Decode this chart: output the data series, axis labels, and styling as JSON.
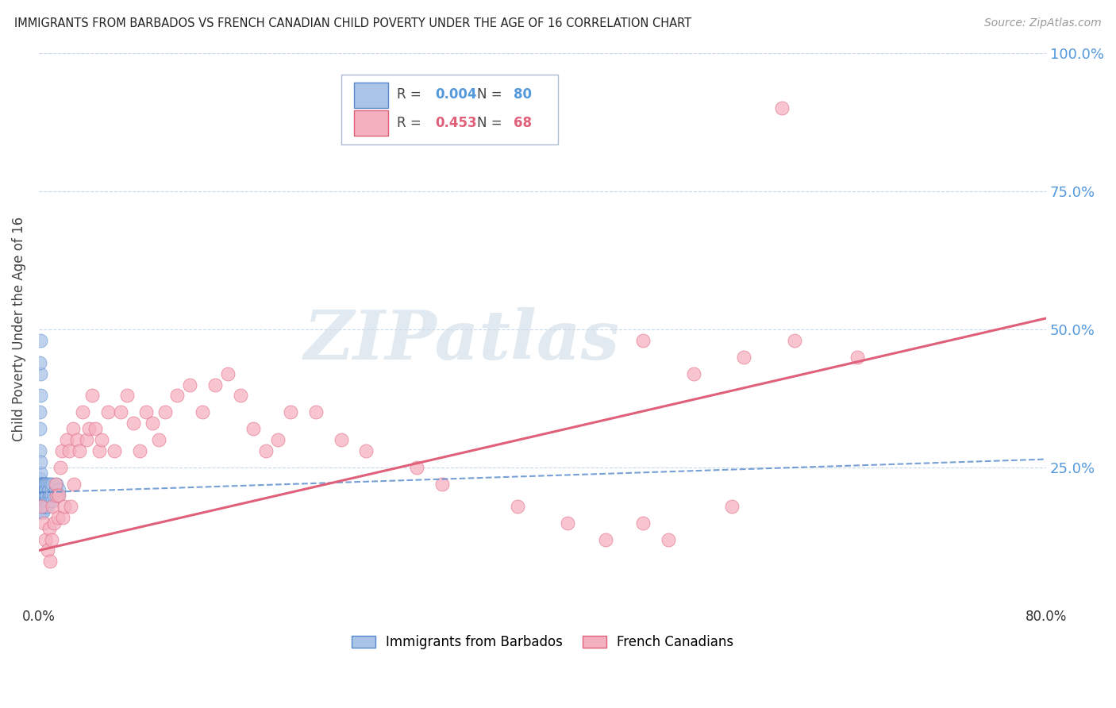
{
  "title": "IMMIGRANTS FROM BARBADOS VS FRENCH CANADIAN CHILD POVERTY UNDER THE AGE OF 16 CORRELATION CHART",
  "source": "Source: ZipAtlas.com",
  "ylabel": "Child Poverty Under the Age of 16",
  "xmin": 0.0,
  "xmax": 0.8,
  "ymin": 0.0,
  "ymax": 1.0,
  "yticks": [
    0.0,
    0.25,
    0.5,
    0.75,
    1.0
  ],
  "ytick_labels": [
    "",
    "25.0%",
    "50.0%",
    "75.0%",
    "100.0%"
  ],
  "xticks": [
    0.0,
    0.2,
    0.4,
    0.6,
    0.8
  ],
  "xtick_labels": [
    "0.0%",
    "",
    "",
    "",
    "80.0%"
  ],
  "blue_R": 0.004,
  "blue_N": 80,
  "pink_R": 0.453,
  "pink_N": 68,
  "blue_color": "#aac4e8",
  "blue_edge_color": "#5588cc",
  "pink_color": "#f5b0c0",
  "pink_edge_color": "#e0607a",
  "legend_blue_label": "Immigrants from Barbados",
  "legend_pink_label": "French Canadians",
  "watermark": "ZIPatlas",
  "blue_scatter_x": [
    0.0005,
    0.0006,
    0.0007,
    0.0008,
    0.0009,
    0.001,
    0.001,
    0.001,
    0.001,
    0.001,
    0.0012,
    0.0013,
    0.0014,
    0.0015,
    0.0016,
    0.0017,
    0.0018,
    0.0019,
    0.002,
    0.002,
    0.002,
    0.002,
    0.002,
    0.002,
    0.0022,
    0.0023,
    0.0025,
    0.0026,
    0.003,
    0.003,
    0.003,
    0.003,
    0.003,
    0.0032,
    0.0035,
    0.004,
    0.004,
    0.004,
    0.004,
    0.004,
    0.0042,
    0.0045,
    0.005,
    0.005,
    0.005,
    0.005,
    0.005,
    0.0055,
    0.006,
    0.006,
    0.006,
    0.006,
    0.0065,
    0.007,
    0.007,
    0.007,
    0.0075,
    0.008,
    0.008,
    0.0085,
    0.009,
    0.009,
    0.0095,
    0.01,
    0.01,
    0.011,
    0.011,
    0.012,
    0.013,
    0.014,
    0.015,
    0.016,
    0.001,
    0.001,
    0.001,
    0.0008,
    0.0009,
    0.0007,
    0.0006,
    0.001
  ],
  "blue_scatter_y": [
    0.2,
    0.22,
    0.19,
    0.21,
    0.23,
    0.2,
    0.18,
    0.22,
    0.24,
    0.17,
    0.21,
    0.2,
    0.19,
    0.22,
    0.21,
    0.2,
    0.18,
    0.22,
    0.21,
    0.2,
    0.19,
    0.22,
    0.18,
    0.17,
    0.22,
    0.21,
    0.2,
    0.19,
    0.22,
    0.21,
    0.2,
    0.18,
    0.17,
    0.22,
    0.21,
    0.2,
    0.22,
    0.19,
    0.18,
    0.21,
    0.2,
    0.22,
    0.21,
    0.2,
    0.19,
    0.18,
    0.22,
    0.21,
    0.2,
    0.19,
    0.22,
    0.21,
    0.2,
    0.22,
    0.19,
    0.18,
    0.21,
    0.2,
    0.22,
    0.21,
    0.2,
    0.19,
    0.22,
    0.21,
    0.2,
    0.22,
    0.19,
    0.2,
    0.21,
    0.22,
    0.2,
    0.21,
    0.48,
    0.42,
    0.38,
    0.32,
    0.28,
    0.44,
    0.35,
    0.26
  ],
  "pink_scatter_x": [
    0.002,
    0.004,
    0.005,
    0.007,
    0.008,
    0.009,
    0.01,
    0.011,
    0.012,
    0.013,
    0.014,
    0.015,
    0.016,
    0.017,
    0.018,
    0.019,
    0.02,
    0.022,
    0.024,
    0.025,
    0.027,
    0.028,
    0.03,
    0.032,
    0.035,
    0.038,
    0.04,
    0.042,
    0.045,
    0.048,
    0.05,
    0.055,
    0.06,
    0.065,
    0.07,
    0.075,
    0.08,
    0.085,
    0.09,
    0.095,
    0.1,
    0.11,
    0.12,
    0.13,
    0.14,
    0.15,
    0.16,
    0.17,
    0.18,
    0.19,
    0.2,
    0.22,
    0.24,
    0.26,
    0.3,
    0.32,
    0.38,
    0.42,
    0.45,
    0.48,
    0.5,
    0.55,
    0.6,
    0.65,
    0.48,
    0.52,
    0.56,
    0.59
  ],
  "pink_scatter_y": [
    0.18,
    0.15,
    0.12,
    0.1,
    0.14,
    0.08,
    0.12,
    0.18,
    0.15,
    0.22,
    0.2,
    0.16,
    0.2,
    0.25,
    0.28,
    0.16,
    0.18,
    0.3,
    0.28,
    0.18,
    0.32,
    0.22,
    0.3,
    0.28,
    0.35,
    0.3,
    0.32,
    0.38,
    0.32,
    0.28,
    0.3,
    0.35,
    0.28,
    0.35,
    0.38,
    0.33,
    0.28,
    0.35,
    0.33,
    0.3,
    0.35,
    0.38,
    0.4,
    0.35,
    0.4,
    0.42,
    0.38,
    0.32,
    0.28,
    0.3,
    0.35,
    0.35,
    0.3,
    0.28,
    0.25,
    0.22,
    0.18,
    0.15,
    0.12,
    0.15,
    0.12,
    0.18,
    0.48,
    0.45,
    0.48,
    0.42,
    0.45,
    0.9
  ],
  "blue_line_x": [
    0.0,
    0.8
  ],
  "blue_line_y": [
    0.205,
    0.265
  ],
  "pink_line_x": [
    0.0,
    0.8
  ],
  "pink_line_y": [
    0.1,
    0.52
  ],
  "grid_color": "#c8d8e8",
  "right_tick_color": "#5599dd"
}
